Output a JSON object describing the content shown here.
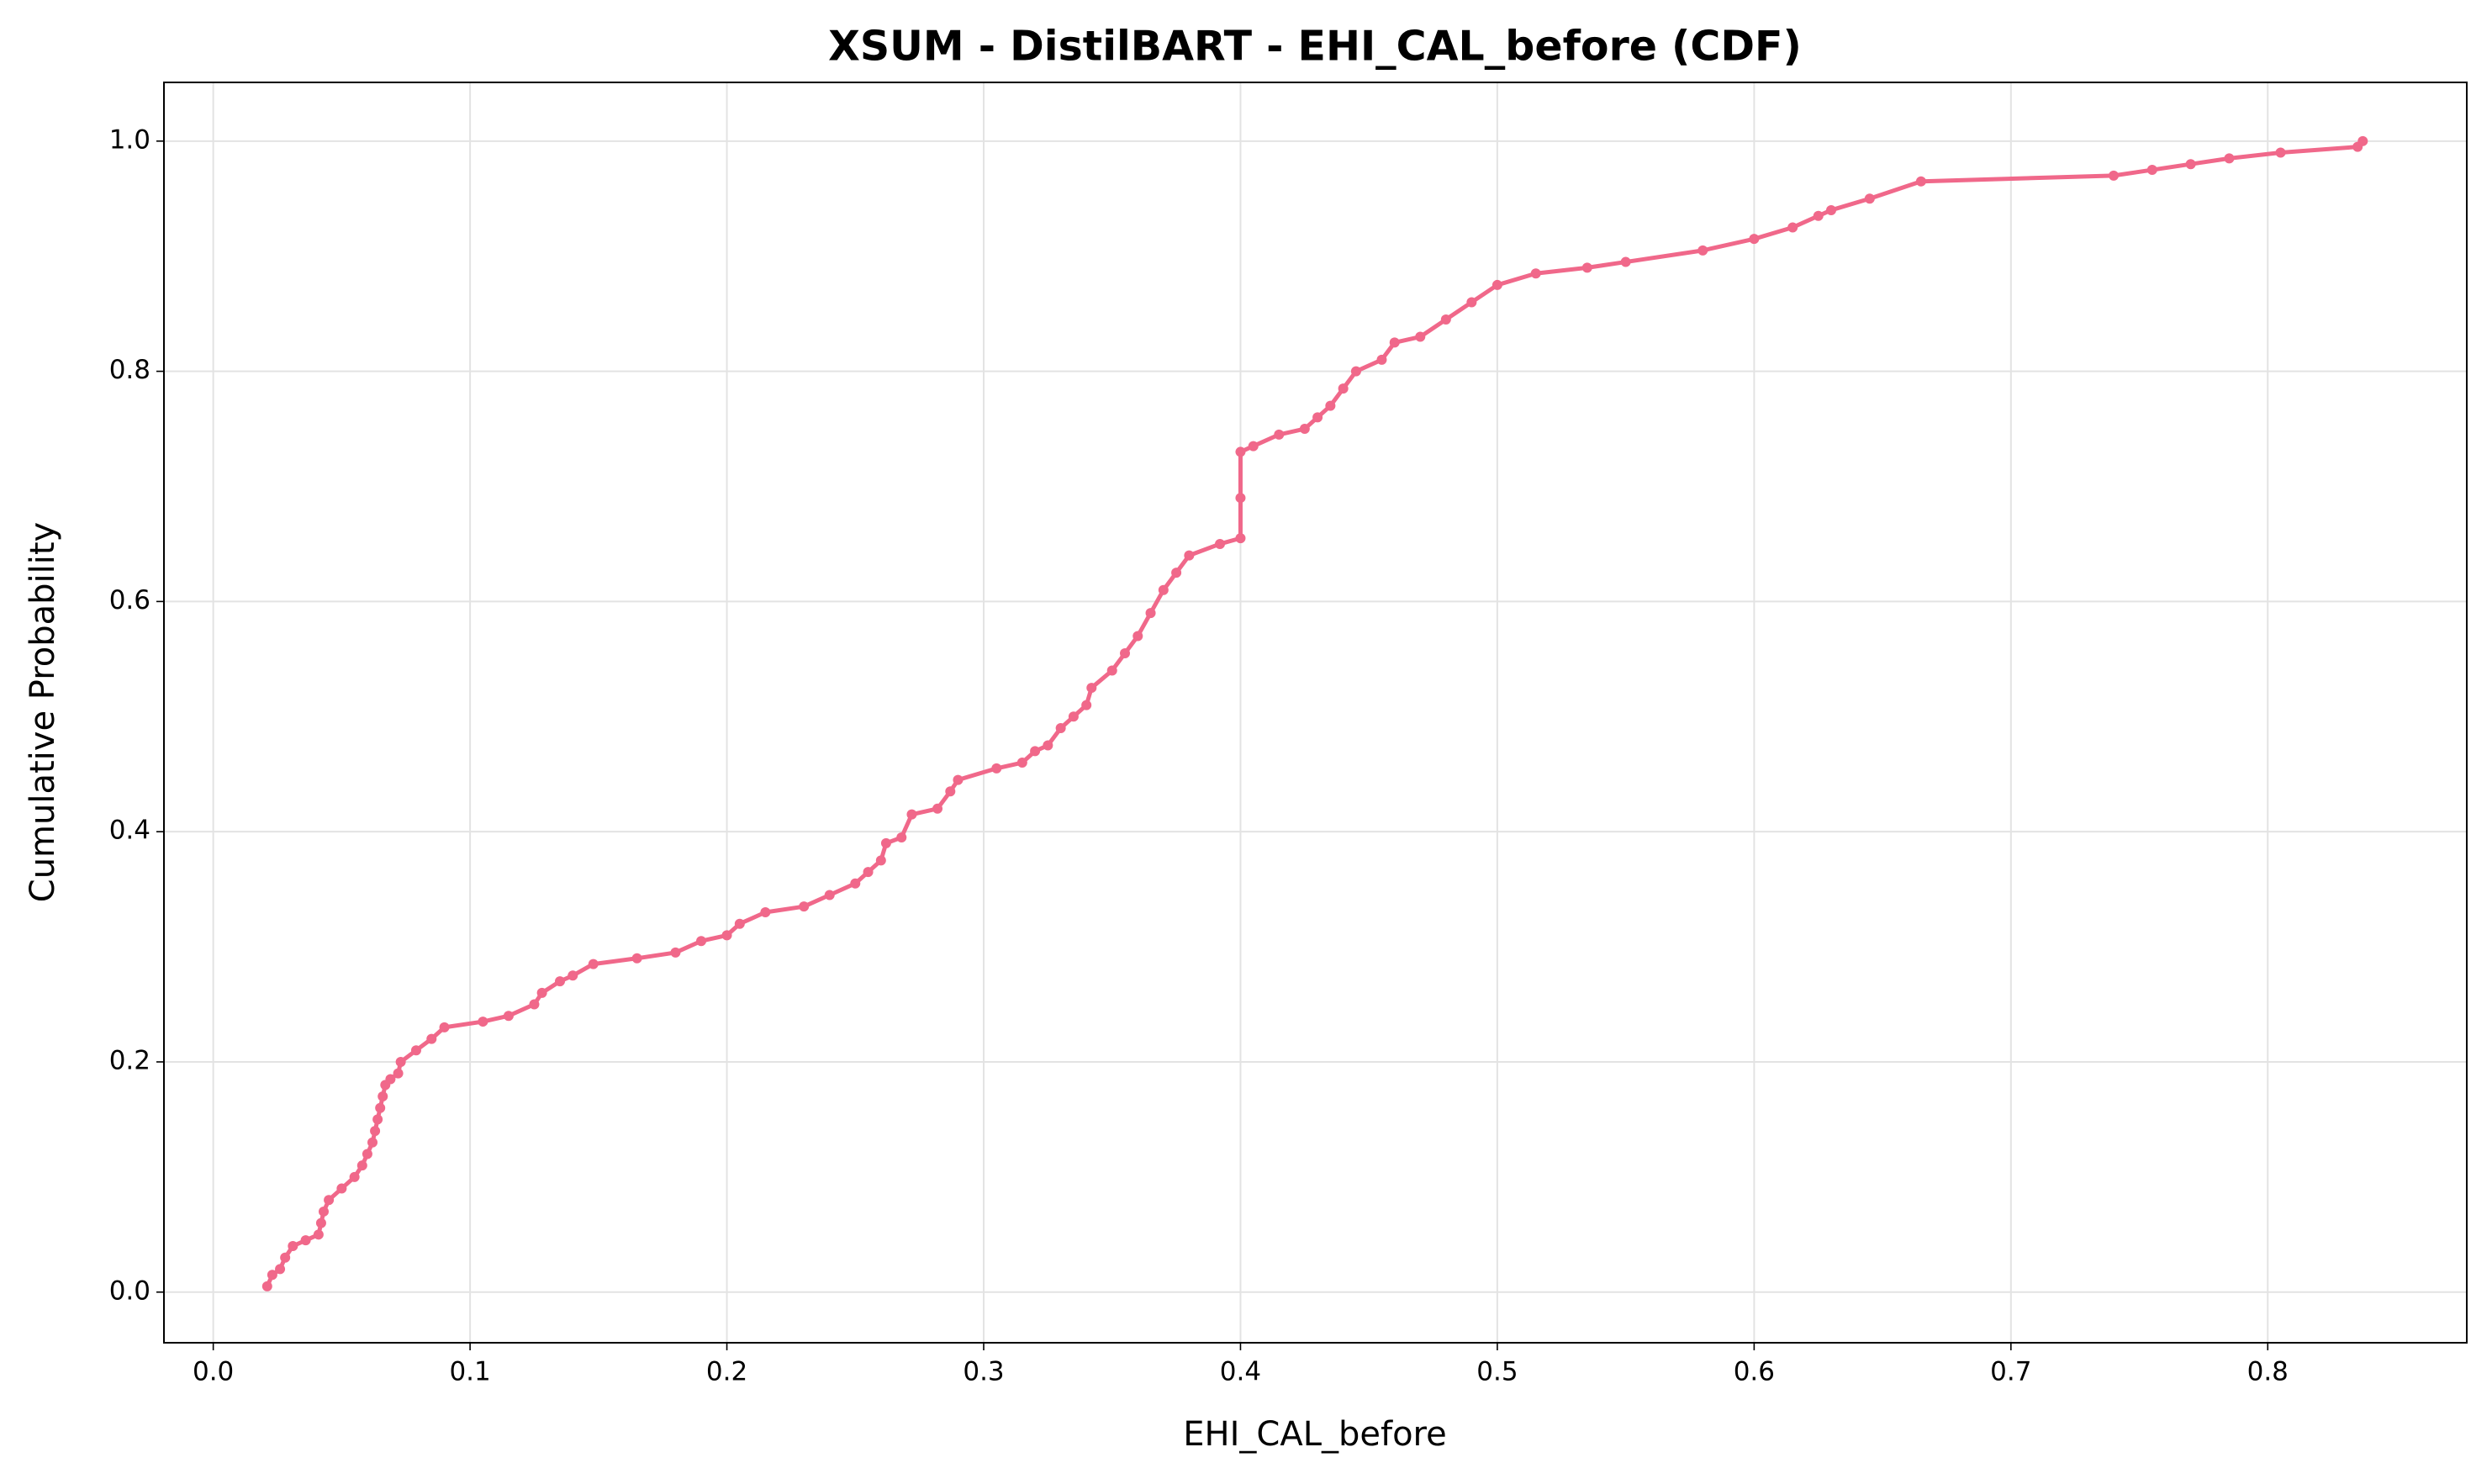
{
  "chart_data": {
    "type": "line",
    "title": "XSUM - DistilBART - EHI_CAL_before (CDF)",
    "x_label": "EHI_CAL_before",
    "y_label": "Cumulative Probability",
    "color": "#f0688a",
    "grid": true,
    "xlim": [
      -0.0192,
      0.8775
    ],
    "ylim": [
      -0.044,
      1.051
    ],
    "xticks": [
      {
        "value": 0,
        "label": "0.0"
      },
      0.1,
      0.2,
      0.3,
      0.4,
      0.5,
      0.6,
      0.7,
      0.8
    ],
    "yticks": [
      {
        "value": 0,
        "label": "0.0"
      },
      0.2,
      0.4,
      0.6,
      0.8,
      {
        "value": 1,
        "label": "1.0"
      }
    ],
    "x": [
      0.021,
      0.023,
      0.026,
      0.028,
      0.031,
      0.036,
      0.041,
      0.042,
      0.043,
      0.045,
      0.05,
      0.055,
      0.058,
      0.06,
      0.062,
      0.063,
      0.064,
      0.065,
      0.066,
      0.067,
      0.069,
      0.072,
      0.073,
      0.079,
      0.085,
      0.09,
      0.105,
      0.115,
      0.125,
      0.128,
      0.135,
      0.14,
      0.148,
      0.165,
      0.18,
      0.19,
      0.2,
      0.205,
      0.215,
      0.23,
      0.24,
      0.25,
      0.255,
      0.26,
      0.262,
      0.268,
      0.272,
      0.282,
      0.287,
      0.29,
      0.305,
      0.315,
      0.32,
      0.325,
      0.33,
      0.335,
      0.34,
      0.342,
      0.35,
      0.355,
      0.36,
      0.365,
      0.37,
      0.375,
      0.38,
      0.392,
      0.4,
      0.4,
      0.4,
      0.405,
      0.415,
      0.425,
      0.43,
      0.435,
      0.44,
      0.445,
      0.455,
      0.46,
      0.47,
      0.48,
      0.49,
      0.5,
      0.515,
      0.535,
      0.55,
      0.58,
      0.6,
      0.615,
      0.625,
      0.63,
      0.645,
      0.665,
      0.74,
      0.755,
      0.77,
      0.785,
      0.805,
      0.835,
      0.837
    ],
    "values": [
      0.005,
      0.015,
      0.02,
      0.03,
      0.04,
      0.045,
      0.05,
      0.06,
      0.07,
      0.08,
      0.09,
      0.1,
      0.11,
      0.12,
      0.13,
      0.14,
      0.15,
      0.16,
      0.17,
      0.18,
      0.185,
      0.19,
      0.2,
      0.21,
      0.22,
      0.23,
      0.235,
      0.24,
      0.25,
      0.26,
      0.27,
      0.275,
      0.285,
      0.29,
      0.295,
      0.305,
      0.31,
      0.32,
      0.33,
      0.335,
      0.345,
      0.355,
      0.365,
      0.375,
      0.39,
      0.395,
      0.415,
      0.42,
      0.435,
      0.445,
      0.455,
      0.46,
      0.47,
      0.475,
      0.49,
      0.5,
      0.51,
      0.525,
      0.54,
      0.555,
      0.57,
      0.59,
      0.61,
      0.625,
      0.64,
      0.65,
      0.655,
      0.69,
      0.73,
      0.735,
      0.745,
      0.75,
      0.76,
      0.77,
      0.785,
      0.8,
      0.81,
      0.825,
      0.83,
      0.845,
      0.86,
      0.875,
      0.885,
      0.89,
      0.895,
      0.905,
      0.915,
      0.925,
      0.935,
      0.94,
      0.95,
      0.965,
      0.97,
      0.975,
      0.98,
      0.985,
      0.99,
      0.995,
      1.0
    ]
  }
}
